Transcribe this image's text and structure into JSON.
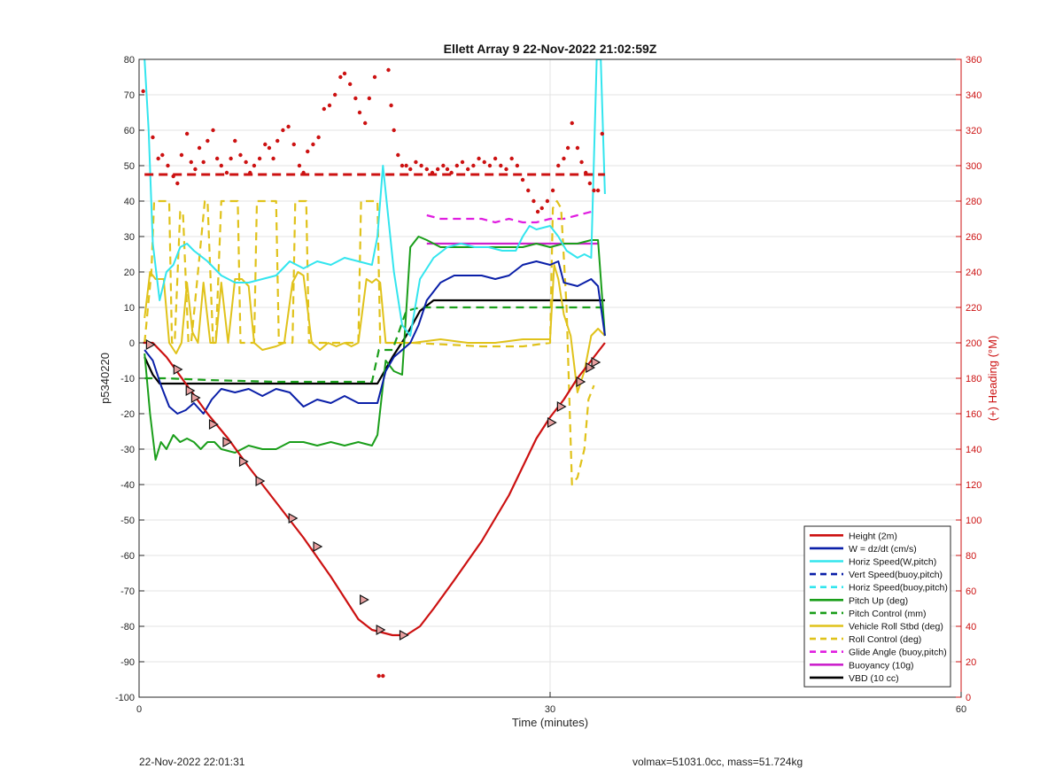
{
  "footer": {
    "left_text": "22-Nov-2022 22:01:31",
    "right_text": "volmax=51031.0cc, mass=51.724kg"
  },
  "chart_data": {
    "type": "line",
    "title": "Ellett Array 9 22-Nov-2022 21:02:59Z",
    "xlabel": "Time (minutes)",
    "ylabel": "p5340220",
    "y2label": "(+) Heading (°M)",
    "xlim": [
      0,
      60
    ],
    "ylim": [
      -100,
      80
    ],
    "y2lim": [
      0,
      360
    ],
    "xticks": [
      0,
      30,
      60
    ],
    "yticks": [
      -100,
      -90,
      -80,
      -70,
      -60,
      -50,
      -40,
      -30,
      -20,
      -10,
      0,
      10,
      20,
      30,
      40,
      50,
      60,
      70,
      80
    ],
    "y2ticks": [
      0,
      20,
      40,
      60,
      80,
      100,
      120,
      140,
      160,
      180,
      200,
      220,
      240,
      260,
      280,
      300,
      320,
      340,
      360
    ],
    "grid": true,
    "legend_position": "bottom-right",
    "colors": {
      "height": "#cc1111",
      "w": "#0a1fa8",
      "horiz": "#33e5ee",
      "pitch": "#1a9e1a",
      "roll": "#e0c21a",
      "glide": "#e01ee0",
      "buoyancy": "#cc22cc",
      "vbd": "#000000",
      "heading": "#cc1111",
      "axis2": "#cc1111"
    },
    "series": [
      {
        "name": "Height (2m)",
        "key": "height",
        "color": "#cc1111",
        "dash": "solid",
        "width": 2.2,
        "x": [
          0.3,
          1.0,
          2.0,
          3.5,
          5.0,
          6.5,
          8.0,
          10.0,
          12.0,
          14.0,
          15.0,
          16.0,
          17.0,
          17.5,
          18.5,
          19.5,
          20.5,
          21.5,
          23.0,
          25.0,
          27.0,
          29.0,
          30.0,
          31.0,
          32.0,
          33.0,
          34.0
        ],
        "y": [
          0,
          0,
          -4,
          -12,
          -20,
          -27,
          -35,
          -45,
          -55,
          -66,
          -72,
          -78,
          -81,
          -81.5,
          -82.5,
          -82.5,
          -80,
          -75,
          -67,
          -56,
          -43,
          -27,
          -21,
          -16,
          -10,
          -5,
          0
        ]
      },
      {
        "name": "W = dz/dt (cm/s)",
        "key": "w",
        "color": "#0a1fa8",
        "dash": "solid",
        "width": 2,
        "x": [
          0.4,
          1.0,
          1.6,
          2.2,
          2.8,
          3.4,
          4.0,
          4.7,
          5.3,
          6.0,
          7.0,
          8.0,
          9.0,
          10.0,
          11.0,
          12.0,
          13.0,
          14.0,
          15.0,
          16.0,
          17.0,
          17.4,
          18.0,
          18.6,
          19.2,
          19.8,
          20.4,
          21.0,
          22.0,
          23.0,
          24.0,
          25.0,
          26.0,
          27.0,
          28.0,
          29.0,
          30.0,
          30.6,
          31.0,
          32.0,
          33.0,
          33.5,
          34.0
        ],
        "y": [
          -2,
          -5,
          -12,
          -18,
          -20,
          -19,
          -17,
          -20,
          -16,
          -13,
          -14,
          -13,
          -15,
          -13,
          -14,
          -18,
          -16,
          -17,
          -15,
          -17,
          -17,
          -17,
          -8,
          -4,
          -2,
          0,
          5,
          12,
          17,
          19,
          19,
          19,
          18,
          19,
          22,
          23,
          22,
          23,
          17,
          16,
          18,
          16,
          2
        ]
      },
      {
        "name": "Horiz Speed(W,pitch)",
        "key": "horiz",
        "color": "#33e5ee",
        "dash": "solid",
        "width": 2,
        "x": [
          0.4,
          0.7,
          1.0,
          1.5,
          2.0,
          2.5,
          3.0,
          3.5,
          4.0,
          5.0,
          6.0,
          7.0,
          8.0,
          9.0,
          10.0,
          11.0,
          12.0,
          13.0,
          14.0,
          15.0,
          16.0,
          17.0,
          17.4,
          17.8,
          18.2,
          18.6,
          19.2,
          19.8,
          20.5,
          21.5,
          22.5,
          23.5,
          24.5,
          25.5,
          26.5,
          27.5,
          28.0,
          28.5,
          29.0,
          30.0,
          30.6,
          31.2,
          32.0,
          32.5,
          33.0,
          33.4,
          33.7,
          34.0
        ],
        "y": [
          80,
          60,
          28,
          12,
          20,
          22,
          27,
          28,
          26,
          23,
          19,
          17,
          17,
          18,
          19,
          23,
          21,
          23,
          22,
          24,
          23,
          22,
          30,
          50,
          35,
          20,
          5,
          2,
          18,
          24,
          27,
          28,
          27,
          27,
          26,
          26,
          30,
          33,
          32,
          33,
          30,
          26,
          24,
          25,
          24,
          80,
          80,
          42
        ]
      },
      {
        "name": "Vert Speed(buoy,pitch)",
        "key": "vert_buoy",
        "color": "#0a1fa8",
        "dash": "dashed",
        "width": 2.2,
        "x": [],
        "y": []
      },
      {
        "name": "Horiz Speed(buoy,pitch)",
        "key": "horiz_buoy",
        "color": "#33e5ee",
        "dash": "dashed",
        "width": 2.2,
        "x": [],
        "y": []
      },
      {
        "name": "Pitch Up (deg)",
        "key": "pitch",
        "color": "#1a9e1a",
        "dash": "solid",
        "width": 2,
        "x": [
          0.4,
          0.8,
          1.2,
          1.6,
          2.0,
          2.5,
          3.0,
          3.5,
          4.0,
          4.5,
          5.0,
          5.5,
          6.0,
          7.0,
          8.0,
          9.0,
          10.0,
          11.0,
          12.0,
          13.0,
          14.0,
          15.0,
          16.0,
          17.0,
          17.4,
          18.0,
          18.6,
          19.2,
          19.8,
          20.4,
          21.0,
          22.0,
          23.0,
          24.0,
          25.0,
          26.0,
          27.0,
          28.0,
          29.0,
          30.0,
          31.0,
          32.0,
          33.0,
          33.5,
          34.0
        ],
        "y": [
          -3,
          -20,
          -33,
          -28,
          -30,
          -26,
          -28,
          -27,
          -28,
          -30,
          -28,
          -28,
          -30,
          -31,
          -29,
          -30,
          -30,
          -28,
          -28,
          -29,
          -28,
          -29,
          -28,
          -29,
          -26,
          -5,
          -8,
          -9,
          27,
          30,
          29,
          27,
          27,
          27,
          27,
          27,
          27,
          27,
          28,
          27,
          28,
          28,
          29,
          29,
          2
        ]
      },
      {
        "name": "Pitch Control (mm)",
        "key": "pitch_ctrl",
        "color": "#1a9e1a",
        "dash": "dashed",
        "width": 2.2,
        "x": [
          0.4,
          1.0,
          2.0,
          5.0,
          10.0,
          15.0,
          17.0,
          17.5,
          18.5,
          19.5,
          20.5,
          25.0,
          30.0,
          34.0
        ],
        "y": [
          -10,
          -10,
          -10,
          -10.5,
          -11,
          -11,
          -11,
          -2,
          -2,
          9,
          10,
          10,
          10,
          10
        ]
      },
      {
        "name": "Vehicle Roll Stbd (deg)",
        "key": "roll",
        "color": "#e0c21a",
        "dash": "solid",
        "width": 2,
        "x": [
          0.4,
          0.8,
          1.2,
          1.8,
          2.2,
          2.7,
          3.1,
          3.5,
          3.9,
          4.3,
          4.7,
          5.2,
          5.6,
          6.0,
          6.5,
          7.0,
          7.5,
          8.0,
          8.4,
          9.0,
          10.0,
          10.6,
          11.2,
          11.6,
          12.0,
          12.6,
          13.2,
          13.8,
          14.4,
          15.0,
          15.5,
          16.0,
          16.6,
          17.0,
          17.3,
          17.6,
          18.0,
          19.0,
          20.0,
          22.0,
          24.0,
          26.0,
          28.0,
          29.0,
          30.0,
          30.3,
          30.6,
          31.0,
          31.5,
          32.0,
          32.5,
          33.0,
          33.5,
          34.0
        ],
        "y": [
          7,
          20,
          18,
          18,
          0,
          -3,
          0,
          17,
          3,
          0,
          17,
          0,
          0,
          17,
          0,
          18,
          18,
          16,
          0,
          -2,
          -1,
          0,
          17,
          20,
          19,
          0,
          -2,
          0,
          -1,
          0,
          -1,
          0,
          18,
          17,
          18,
          17,
          0,
          0,
          0,
          1,
          0,
          0,
          1,
          1,
          1,
          22,
          18,
          8,
          2,
          -14,
          -8,
          2,
          4,
          2
        ]
      },
      {
        "name": "Roll Control (deg)",
        "key": "roll_ctrl",
        "color": "#e0c21a",
        "dash": "dashed",
        "width": 2.2,
        "x": [
          0.4,
          0.9,
          1.1,
          1.3,
          2.2,
          2.4,
          2.6,
          3.0,
          3.2,
          3.6,
          3.8,
          4.8,
          5.0,
          5.4,
          5.6,
          6.0,
          6.2,
          7.2,
          7.4,
          8.4,
          8.6,
          10.0,
          10.2,
          11.2,
          11.4,
          12.2,
          12.4,
          16.0,
          16.2,
          17.4,
          17.6,
          18.0,
          20.0,
          25.0,
          28.0,
          30.0,
          30.2,
          30.5,
          30.8,
          31.2,
          31.6,
          32.0,
          32.5,
          32.8,
          33.2
        ],
        "y": [
          0,
          20,
          40,
          40,
          40,
          0,
          0,
          37,
          37,
          0,
          0,
          40,
          40,
          0,
          0,
          40,
          40,
          40,
          0,
          0,
          40,
          40,
          0,
          0,
          40,
          40,
          0,
          0,
          40,
          40,
          0,
          0,
          0,
          -1,
          -1,
          0,
          38,
          40,
          38,
          10,
          -40,
          -38,
          -30,
          -16,
          -12
        ]
      },
      {
        "name": "Glide Angle (buoy,pitch)",
        "key": "glide",
        "color": "#e01ee0",
        "dash": "dashed",
        "width": 2.2,
        "x": [
          21.0,
          22.0,
          23.0,
          24.0,
          25.0,
          26.0,
          27.0,
          28.0,
          29.0,
          30.0,
          31.0,
          32.0,
          33.0
        ],
        "y": [
          36,
          35,
          35,
          35,
          35,
          34,
          35,
          34,
          34,
          35,
          35,
          36,
          37
        ]
      },
      {
        "name": "Buoyancy (10g)",
        "key": "buoyancy",
        "color": "#cc22cc",
        "dash": "solid",
        "width": 2.2,
        "x": [
          21.0,
          33.5
        ],
        "y": [
          28,
          28
        ]
      },
      {
        "name": "VBD (10 cc)",
        "key": "vbd",
        "color": "#000000",
        "dash": "solid",
        "width": 2.2,
        "x": [
          0.4,
          1.0,
          1.5,
          5.0,
          10.0,
          15.0,
          17.4,
          18.5,
          19.5,
          20.5,
          21.5,
          25.0,
          30.0,
          34.0
        ],
        "y": [
          -4,
          -9,
          -11.5,
          -11.5,
          -11.5,
          -11.5,
          -11.5,
          -4,
          2,
          9,
          12,
          12,
          12,
          12
        ]
      }
    ],
    "heading_reference": {
      "axis": "right",
      "value": 295,
      "color": "#cc1111",
      "dash": "dashed",
      "x": [
        0.4,
        34.0
      ]
    },
    "heading_points": {
      "axis": "right",
      "x": [
        0.3,
        1.0,
        1.4,
        1.7,
        2.1,
        2.5,
        2.8,
        3.1,
        3.5,
        3.8,
        4.1,
        4.4,
        4.7,
        5.0,
        5.4,
        5.7,
        6.0,
        6.4,
        6.7,
        7.0,
        7.4,
        7.8,
        8.1,
        8.4,
        8.8,
        9.2,
        9.5,
        9.8,
        10.1,
        10.5,
        10.9,
        11.3,
        11.7,
        12.0,
        12.3,
        12.7,
        13.1,
        13.5,
        13.9,
        14.3,
        14.7,
        15.0,
        15.4,
        15.8,
        16.1,
        16.5,
        16.8,
        17.2,
        17.5,
        17.8,
        18.2,
        18.4,
        18.6,
        18.9,
        19.2,
        19.5,
        19.8,
        20.2,
        20.6,
        21.0,
        21.4,
        21.8,
        22.2,
        22.5,
        22.8,
        23.2,
        23.6,
        24.0,
        24.4,
        24.8,
        25.2,
        25.6,
        26.0,
        26.4,
        26.8,
        27.2,
        27.6,
        28.0,
        28.4,
        28.8,
        29.1,
        29.4,
        29.8,
        30.2,
        30.6,
        31.0,
        31.3,
        31.6,
        32.0,
        32.3,
        32.6,
        32.9,
        33.2,
        33.5,
        33.8
      ],
      "y": [
        342,
        316,
        304,
        306,
        300,
        294,
        290,
        306,
        318,
        302,
        298,
        310,
        302,
        314,
        320,
        304,
        300,
        296,
        304,
        314,
        306,
        302,
        296,
        300,
        304,
        312,
        310,
        304,
        314,
        320,
        322,
        312,
        300,
        296,
        308,
        312,
        316,
        332,
        334,
        340,
        350,
        352,
        346,
        338,
        330,
        324,
        338,
        350,
        12,
        12,
        354,
        334,
        320,
        306,
        300,
        300,
        298,
        302,
        300,
        298,
        296,
        298,
        300,
        298,
        296,
        300,
        302,
        298,
        300,
        304,
        302,
        300,
        304,
        300,
        298,
        304,
        300,
        292,
        286,
        280,
        274,
        276,
        280,
        286,
        300,
        304,
        310,
        324,
        310,
        302,
        296,
        290,
        286,
        286,
        318
      ]
    },
    "markers": {
      "series": "height",
      "x": [
        0.8,
        2.8,
        3.7,
        4.1,
        5.4,
        6.4,
        7.6,
        8.8,
        11.2,
        13.0,
        16.4,
        17.6,
        19.3,
        30.1,
        30.8,
        32.2,
        32.9,
        33.3
      ],
      "y": [
        -0.5,
        -7.5,
        -13.5,
        -15.5,
        -23,
        -28,
        -33.5,
        -39,
        -49.5,
        -57.5,
        -72.5,
        -81,
        -82.5,
        -22.5,
        -18,
        -11,
        -7,
        -5.5
      ]
    }
  }
}
